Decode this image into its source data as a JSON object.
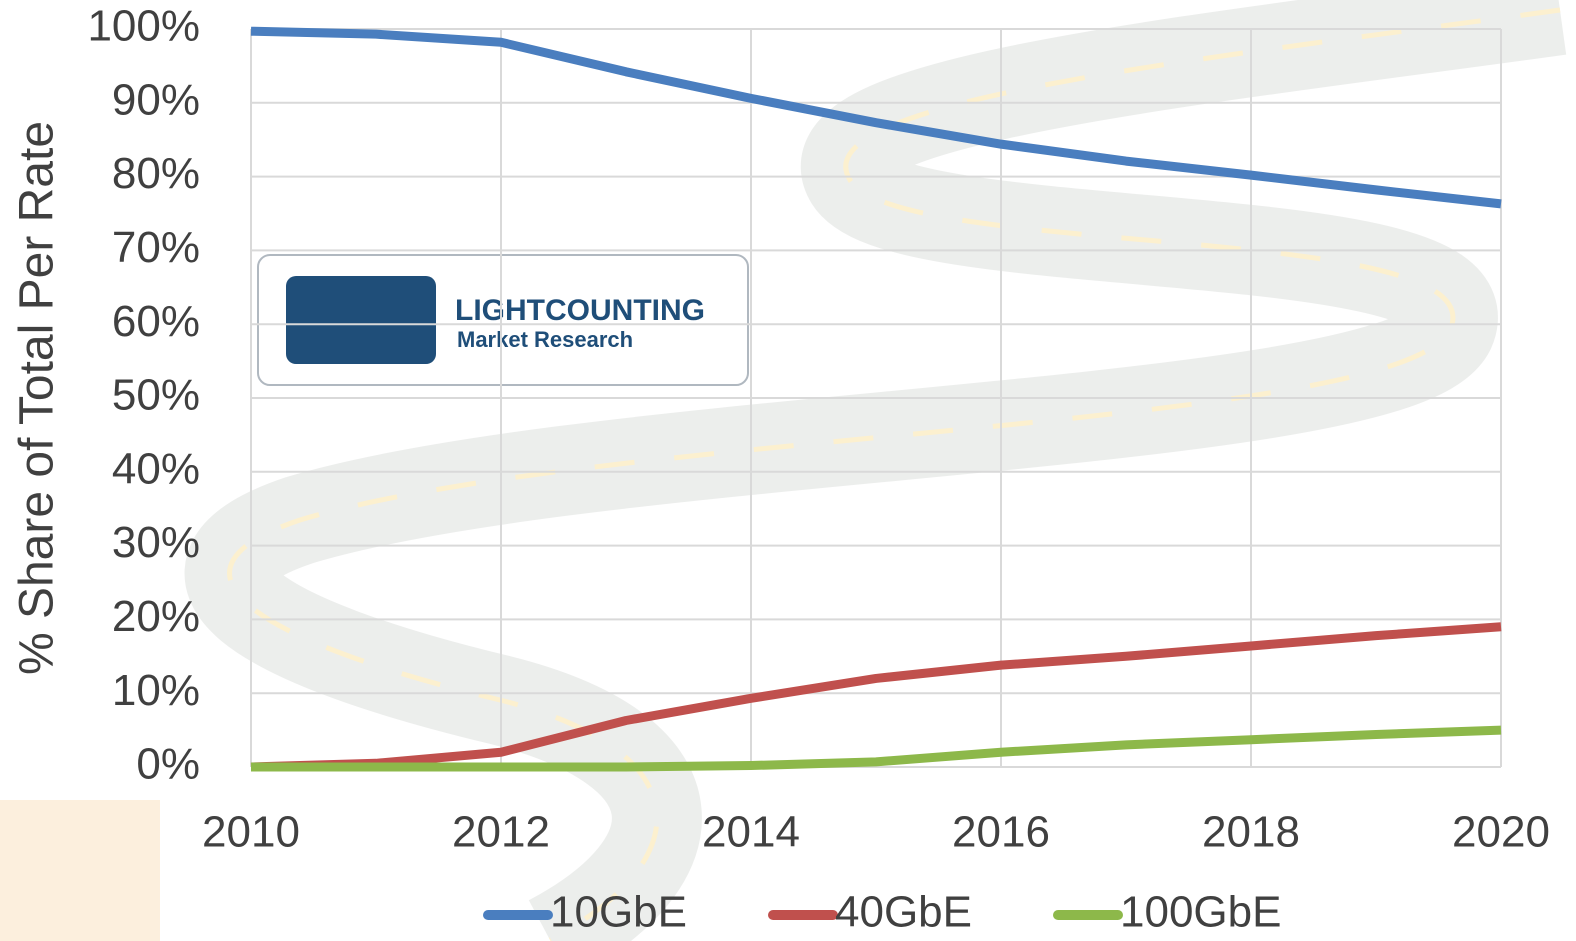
{
  "chart_data": {
    "type": "line",
    "y_label": "% Share of Total Per Rate",
    "x": [
      2010,
      2011,
      2012,
      2013,
      2014,
      2015,
      2016,
      2017,
      2018,
      2019,
      2020
    ],
    "xlim": [
      2010,
      2020
    ],
    "xticks": [
      2010,
      2012,
      2014,
      2016,
      2018,
      2020
    ],
    "ylim": [
      0,
      100
    ],
    "yticks": [
      {
        "value": 0,
        "label": "0%"
      },
      {
        "value": 10,
        "label": "10%"
      },
      {
        "value": 20,
        "label": "20%"
      },
      {
        "value": 30,
        "label": "30%"
      },
      {
        "value": 40,
        "label": "40%"
      },
      {
        "value": 50,
        "label": "50%"
      },
      {
        "value": 60,
        "label": "60%"
      },
      {
        "value": 70,
        "label": "70%"
      },
      {
        "value": 80,
        "label": "80%"
      },
      {
        "value": 90,
        "label": "90%"
      },
      {
        "value": 100,
        "label": "100%"
      }
    ],
    "grid": true,
    "legend": "bottom",
    "series": [
      {
        "name": "10GbE",
        "color": "#4a7ebf",
        "values": [
          99.7,
          99.3,
          98.2,
          94.2,
          90.6,
          87.3,
          84.4,
          82.1,
          80.2,
          78.2,
          76.3
        ]
      },
      {
        "name": "40GbE",
        "color": "#c0504d",
        "values": [
          0,
          0.5,
          2,
          6.3,
          9.3,
          12,
          13.8,
          15,
          16.4,
          17.8,
          19
        ]
      },
      {
        "name": "100GbE",
        "color": "#8db84a",
        "values": [
          0,
          0,
          0,
          0,
          0.2,
          0.7,
          2,
          3,
          3.7,
          4.4,
          5
        ]
      }
    ],
    "annotations": [
      "LIGHTCOUNTING",
      "Market Research"
    ]
  }
}
